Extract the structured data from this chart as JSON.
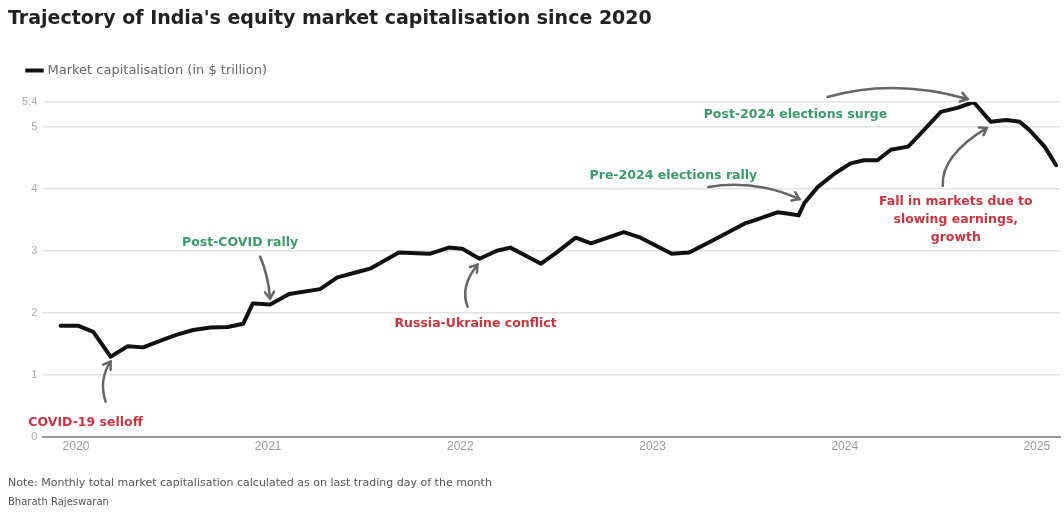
{
  "chart_data": {
    "type": "line",
    "title": "Trajectory of India's equity market capitalisation since 2020",
    "x": [
      2019.92,
      2020.01,
      2020.09,
      2020.18,
      2020.27,
      2020.35,
      2020.44,
      2020.53,
      2020.61,
      2020.7,
      2020.79,
      2020.87,
      2020.92,
      2021.01,
      2021.11,
      2021.27,
      2021.36,
      2021.47,
      2021.53,
      2021.68,
      2021.84,
      2021.94,
      2022.01,
      2022.1,
      2022.19,
      2022.26,
      2022.42,
      2022.5,
      2022.6,
      2022.68,
      2022.85,
      2022.93,
      2023.1,
      2023.19,
      2023.31,
      2023.48,
      2023.53,
      2023.65,
      2023.7,
      2023.76,
      2023.79,
      2023.86,
      2023.95,
      2024.03,
      2024.1,
      2024.17,
      2024.24,
      2024.33,
      2024.38,
      2024.5,
      2024.59,
      2024.67,
      2024.76,
      2024.84,
      2024.91,
      2024.96,
      2025.04,
      2025.1
    ],
    "series": [
      {
        "name": "Market capitalisation (in $ trillion)",
        "color": "#111111",
        "values": [
          1.79,
          1.79,
          1.69,
          1.29,
          1.46,
          1.44,
          1.55,
          1.65,
          1.72,
          1.76,
          1.77,
          1.82,
          2.15,
          2.13,
          2.3,
          2.38,
          2.57,
          2.66,
          2.71,
          2.97,
          2.95,
          3.05,
          3.03,
          2.87,
          3.0,
          3.05,
          2.79,
          2.97,
          3.21,
          3.12,
          3.3,
          3.22,
          2.95,
          2.97,
          3.16,
          3.44,
          3.49,
          3.62,
          3.6,
          3.57,
          3.77,
          4.03,
          4.25,
          4.41,
          4.46,
          4.46,
          4.63,
          4.68,
          4.84,
          5.24,
          5.31,
          5.4,
          5.08,
          5.11,
          5.08,
          4.95,
          4.68,
          4.38
        ]
      }
    ],
    "xlim": [
      2019.83,
      2025.12
    ],
    "xticks": [
      2020,
      2021,
      2022,
      2023,
      2024,
      2025
    ],
    "ylim": [
      0,
      5.4
    ],
    "yticks": [
      0,
      1,
      2,
      3,
      4,
      5,
      5.4
    ],
    "grid": "y",
    "legend": "top left",
    "marker": "none",
    "line_style": "solid",
    "annotations": [
      {
        "text": "COVID-19 selloff",
        "x": 2020.18,
        "y": 1.29
      },
      {
        "text": "Post-COVID rally",
        "x": 2021.01,
        "y": 2.13
      },
      {
        "text": "Russia-Ukraine conflict",
        "x": 2022.1,
        "y": 2.87
      },
      {
        "text": "Pre-2024 elections rally",
        "x": 2023.79,
        "y": 3.77
      },
      {
        "text": "Post-2024 elections surge",
        "x": 2024.67,
        "y": 5.4
      },
      {
        "text": "Fall in markets due to slowing earnings, growth",
        "x": 2024.76,
        "y": 5.08
      },
      "Note: Monthly total market capitalisation calculated as on last trading day of the month",
      "Bharath Rajeswaran"
    ]
  }
}
